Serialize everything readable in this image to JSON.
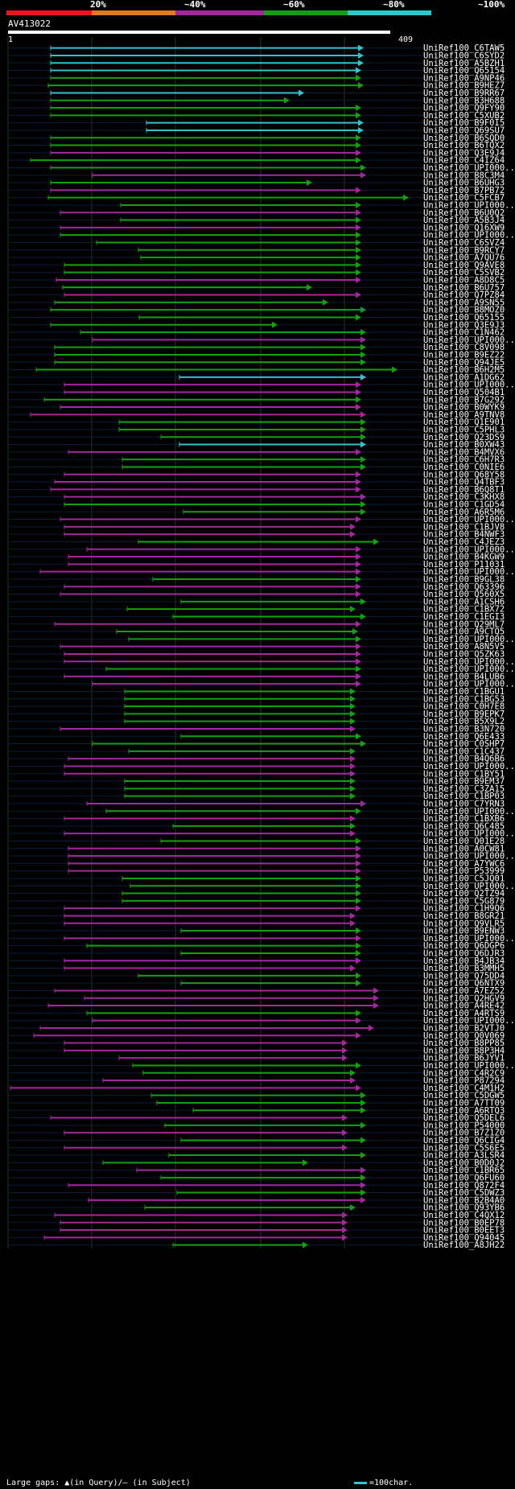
{
  "scale": {
    "labels": [
      "20%",
      "~40%",
      "~60%",
      "~80%",
      "~100%"
    ],
    "colors": [
      "#e8141e",
      "#e07a1a",
      "#a4279f",
      "#12a112",
      "#2fc4d0"
    ]
  },
  "query": {
    "id": "AV413022",
    "start": "1",
    "end": "409"
  },
  "legend": {
    "text": "Large gaps: ▲(in Query)/— (in Subject)",
    "key": "=100char."
  },
  "hits": [
    {
      "l": "UniRef100_C6TAW5",
      "c": "#2fc4d0",
      "s": 63,
      "e": 452
    },
    {
      "l": "UniRef100_C6SYD2",
      "c": "#2fc4d0",
      "s": 63,
      "e": 452
    },
    {
      "l": "UniRef100_A5BZH1",
      "c": "#2fc4d0",
      "s": 63,
      "e": 452
    },
    {
      "l": "UniRef100_Q65154",
      "c": "#2fc4d0",
      "s": 63,
      "e": 449
    },
    {
      "l": "UniRef100_A9NP46",
      "c": "#12a112",
      "s": 63,
      "e": 449
    },
    {
      "l": "UniRef100_B9HEZ7",
      "c": "#12a112",
      "s": 60,
      "e": 452
    },
    {
      "l": "UniRef100_B9RR67",
      "c": "#2fc4d0",
      "s": 63,
      "e": 378
    },
    {
      "l": "UniRef100_B3H688",
      "c": "#12a112",
      "s": 63,
      "e": 360
    },
    {
      "l": "UniRef100_Q9FY90",
      "c": "#12a112",
      "s": 63,
      "e": 449
    },
    {
      "l": "UniRef100_C5XUB2",
      "c": "#12a112",
      "s": 63,
      "e": 449
    },
    {
      "l": "UniRef100_B9F0I5",
      "c": "#2fc4d0",
      "s": 182,
      "e": 452
    },
    {
      "l": "UniRef100_Q69SU7",
      "c": "#2fc4d0",
      "s": 182,
      "e": 452
    },
    {
      "l": "UniRef100_B6SQD0",
      "c": "#12a112",
      "s": 63,
      "e": 449
    },
    {
      "l": "UniRef100_B6TQX2",
      "c": "#12a112",
      "s": 63,
      "e": 449
    },
    {
      "l": "UniRef100_Q3E9J4",
      "c": "#a4279f",
      "s": 63,
      "e": 449
    },
    {
      "l": "UniRef100_C4IZ64",
      "c": "#12a112",
      "s": 38,
      "e": 449
    },
    {
      "l": "UniRef100_UPI000..",
      "c": "#12a112",
      "s": 63,
      "e": 455
    },
    {
      "l": "UniRef100_B8C3M4",
      "c": "#a4279f",
      "s": 115,
      "e": 455
    },
    {
      "l": "UniRef100_B6UHG3",
      "c": "#12a112",
      "s": 63,
      "e": 388
    },
    {
      "l": "UniRef100_B7PB72",
      "c": "#a4279f",
      "s": 63,
      "e": 449
    },
    {
      "l": "UniRef100_C5FCB7",
      "c": "#12a112",
      "s": 60,
      "e": 508
    },
    {
      "l": "UniRef100_UPI000..",
      "c": "#12a112",
      "s": 150,
      "e": 449
    },
    {
      "l": "UniRef100_B6U0Q2",
      "c": "#a4279f",
      "s": 75,
      "e": 449
    },
    {
      "l": "UniRef100_A5B3J4",
      "c": "#12a112",
      "s": 150,
      "e": 449
    },
    {
      "l": "UniRef100_Q16XW9",
      "c": "#a4279f",
      "s": 75,
      "e": 449
    },
    {
      "l": "UniRef100_UPI000..",
      "c": "#12a112",
      "s": 75,
      "e": 449
    },
    {
      "l": "UniRef100_C6SVZ4",
      "c": "#12a112",
      "s": 120,
      "e": 449
    },
    {
      "l": "UniRef100_B9RCY7",
      "c": "#12a112",
      "s": 172,
      "e": 449
    },
    {
      "l": "UniRef100_A7QU76",
      "c": "#12a112",
      "s": 175,
      "e": 449
    },
    {
      "l": "UniRef100_Q9AVE8",
      "c": "#12a112",
      "s": 80,
      "e": 449
    },
    {
      "l": "UniRef100_C5SVB2",
      "c": "#12a112",
      "s": 80,
      "e": 449
    },
    {
      "l": "UniRef100_A8D8C5",
      "c": "#a4279f",
      "s": 70,
      "e": 449
    },
    {
      "l": "UniRef100_B6U757",
      "c": "#12a112",
      "s": 78,
      "e": 388
    },
    {
      "l": "UniRef100_Q7PZ84",
      "c": "#a4279f",
      "s": 80,
      "e": 449
    },
    {
      "l": "UniRef100_A9SN55",
      "c": "#12a112",
      "s": 68,
      "e": 408
    },
    {
      "l": "UniRef100_B8MOZ0",
      "c": "#12a112",
      "s": 63,
      "e": 455
    },
    {
      "l": "UniRef100_Q65155",
      "c": "#12a112",
      "s": 173,
      "e": 449
    },
    {
      "l": "UniRef100_Q3E9J3",
      "c": "#12a112",
      "s": 63,
      "e": 345
    },
    {
      "l": "UniRef100_C1N462",
      "c": "#12a112",
      "s": 100,
      "e": 455
    },
    {
      "l": "UniRef100_UPI000..",
      "c": "#a4279f",
      "s": 115,
      "e": 455
    },
    {
      "l": "UniRef100_C8V098",
      "c": "#12a112",
      "s": 68,
      "e": 455
    },
    {
      "l": "UniRef100_B9EZ22",
      "c": "#12a112",
      "s": 68,
      "e": 455
    },
    {
      "l": "UniRef100_Q94JE5",
      "c": "#12a112",
      "s": 68,
      "e": 455
    },
    {
      "l": "UniRef100_B6H2M5",
      "c": "#12a112",
      "s": 45,
      "e": 494
    },
    {
      "l": "UniRef100_A1DG62",
      "c": "#2fc4d0",
      "s": 223,
      "e": 455
    },
    {
      "l": "UniRef100_UPI000..",
      "c": "#a4279f",
      "s": 80,
      "e": 449
    },
    {
      "l": "UniRef100_Q504B1",
      "c": "#a4279f",
      "s": 80,
      "e": 449
    },
    {
      "l": "UniRef100_B7G292",
      "c": "#12a112",
      "s": 55,
      "e": 449
    },
    {
      "l": "UniRef100_B0WYK9",
      "c": "#a4279f",
      "s": 75,
      "e": 449
    },
    {
      "l": "UniRef100_A9TNV8",
      "c": "#a4279f",
      "s": 38,
      "e": 455
    },
    {
      "l": "UniRef100_Q1E901",
      "c": "#12a112",
      "s": 148,
      "e": 455
    },
    {
      "l": "UniRef100_C5PHL3",
      "c": "#12a112",
      "s": 148,
      "e": 455
    },
    {
      "l": "UniRef100_Q23DS9",
      "c": "#12a112",
      "s": 200,
      "e": 455
    },
    {
      "l": "UniRef100_B0XW43",
      "c": "#2fc4d0",
      "s": 223,
      "e": 455
    },
    {
      "l": "UniRef100_B4MVX6",
      "c": "#a4279f",
      "s": 85,
      "e": 449
    },
    {
      "l": "UniRef100_C6H7R3",
      "c": "#12a112",
      "s": 152,
      "e": 455
    },
    {
      "l": "UniRef100_C0NIE6",
      "c": "#12a112",
      "s": 152,
      "e": 455
    },
    {
      "l": "UniRef100_Q68Y58",
      "c": "#a4279f",
      "s": 80,
      "e": 449
    },
    {
      "l": "UniRef100_Q4TBF3",
      "c": "#a4279f",
      "s": 68,
      "e": 449
    },
    {
      "l": "UniRef100_B6Q8T1",
      "c": "#a4279f",
      "s": 63,
      "e": 449
    },
    {
      "l": "UniRef100_C3KHX8",
      "c": "#a4279f",
      "s": 80,
      "e": 455
    },
    {
      "l": "UniRef100_C1GD54",
      "c": "#12a112",
      "s": 80,
      "e": 455
    },
    {
      "l": "UniRef100_A6R5M6",
      "c": "#12a112",
      "s": 228,
      "e": 455
    },
    {
      "l": "UniRef100_UPI000..",
      "c": "#a4279f",
      "s": 75,
      "e": 449
    },
    {
      "l": "UniRef100_C1BJV8",
      "c": "#a4279f",
      "s": 80,
      "e": 442
    },
    {
      "l": "UniRef100_B4NWF3",
      "c": "#a4279f",
      "s": 80,
      "e": 442
    },
    {
      "l": "UniRef100_C4JEZ3",
      "c": "#12a112",
      "s": 172,
      "e": 471
    },
    {
      "l": "UniRef100_UPI000..",
      "c": "#a4279f",
      "s": 108,
      "e": 449
    },
    {
      "l": "UniRef100_B4KGW9",
      "c": "#a4279f",
      "s": 85,
      "e": 449
    },
    {
      "l": "UniRef100_P11031",
      "c": "#a4279f",
      "s": 85,
      "e": 449
    },
    {
      "l": "UniRef100_UPI000..",
      "c": "#a4279f",
      "s": 50,
      "e": 449
    },
    {
      "l": "UniRef100_B9GL38",
      "c": "#12a112",
      "s": 190,
      "e": 449
    },
    {
      "l": "UniRef100_Q63396",
      "c": "#a4279f",
      "s": 80,
      "e": 449
    },
    {
      "l": "UniRef100_Q560X5",
      "c": "#a4279f",
      "s": 75,
      "e": 449
    },
    {
      "l": "UniRef100_A1CSH6",
      "c": "#12a112",
      "s": 225,
      "e": 455
    },
    {
      "l": "UniRef100_C1BX72",
      "c": "#12a112",
      "s": 158,
      "e": 442
    },
    {
      "l": "UniRef100_C1EGI3",
      "c": "#12a112",
      "s": 215,
      "e": 455
    },
    {
      "l": "UniRef100_Q29ML7",
      "c": "#a4279f",
      "s": 68,
      "e": 449
    },
    {
      "l": "UniRef100_A9CTQ5",
      "c": "#12a112",
      "s": 145,
      "e": 445
    },
    {
      "l": "UniRef100_UPI000..",
      "c": "#12a112",
      "s": 160,
      "e": 449
    },
    {
      "l": "UniRef100_A8N5V5",
      "c": "#a4279f",
      "s": 75,
      "e": 449
    },
    {
      "l": "UniRef100_Q5ZK63",
      "c": "#a4279f",
      "s": 80,
      "e": 449
    },
    {
      "l": "UniRef100_UPI000..",
      "c": "#a4279f",
      "s": 80,
      "e": 449
    },
    {
      "l": "UniRef100_UPI000..",
      "c": "#12a112",
      "s": 132,
      "e": 449
    },
    {
      "l": "UniRef100_B4LUB6",
      "c": "#a4279f",
      "s": 80,
      "e": 449
    },
    {
      "l": "UniRef100_UPI000..",
      "c": "#a4279f",
      "s": 115,
      "e": 449
    },
    {
      "l": "UniRef100_C1BGU1",
      "c": "#12a112",
      "s": 155,
      "e": 442
    },
    {
      "l": "UniRef100_C1BG53",
      "c": "#12a112",
      "s": 155,
      "e": 442
    },
    {
      "l": "UniRef100_C0H7E8",
      "c": "#12a112",
      "s": 155,
      "e": 442
    },
    {
      "l": "UniRef100_B9EPK7",
      "c": "#12a112",
      "s": 155,
      "e": 442
    },
    {
      "l": "UniRef100_B5X9L2",
      "c": "#12a112",
      "s": 155,
      "e": 442
    },
    {
      "l": "UniRef100_B3N720",
      "c": "#a4279f",
      "s": 75,
      "e": 442
    },
    {
      "l": "UniRef100_Q6E433",
      "c": "#12a112",
      "s": 225,
      "e": 449
    },
    {
      "l": "UniRef100_C0SHP7",
      "c": "#12a112",
      "s": 115,
      "e": 455
    },
    {
      "l": "UniRef100_C1C437",
      "c": "#12a112",
      "s": 160,
      "e": 442
    },
    {
      "l": "UniRef100_B4Q6B6",
      "c": "#a4279f",
      "s": 85,
      "e": 442
    },
    {
      "l": "UniRef100_UPI000..",
      "c": "#a4279f",
      "s": 80,
      "e": 442
    },
    {
      "l": "UniRef100_C1BY51",
      "c": "#a4279f",
      "s": 80,
      "e": 442
    },
    {
      "l": "UniRef100_B9EM37",
      "c": "#12a112",
      "s": 155,
      "e": 442
    },
    {
      "l": "UniRef100_C3ZA15",
      "c": "#12a112",
      "s": 155,
      "e": 442
    },
    {
      "l": "UniRef100_C1BP03",
      "c": "#12a112",
      "s": 155,
      "e": 442
    },
    {
      "l": "UniRef100_C7YRN3",
      "c": "#a4279f",
      "s": 108,
      "e": 455
    },
    {
      "l": "UniRef100_UPI000..",
      "c": "#12a112",
      "s": 132,
      "e": 449
    },
    {
      "l": "UniRef100_C1BXB6",
      "c": "#a4279f",
      "s": 80,
      "e": 442
    },
    {
      "l": "UniRef100_Q6C485",
      "c": "#12a112",
      "s": 215,
      "e": 442
    },
    {
      "l": "UniRef100_UPI000..",
      "c": "#a4279f",
      "s": 80,
      "e": 442
    },
    {
      "l": "UniRef100_Q01E28",
      "c": "#12a112",
      "s": 200,
      "e": 449
    },
    {
      "l": "UniRef100_A0CW81",
      "c": "#a4279f",
      "s": 85,
      "e": 449
    },
    {
      "l": "UniRef100_UPI000..",
      "c": "#a4279f",
      "s": 85,
      "e": 449
    },
    {
      "l": "UniRef100_A7YWC6",
      "c": "#a4279f",
      "s": 85,
      "e": 449
    },
    {
      "l": "UniRef100_P53999",
      "c": "#a4279f",
      "s": 85,
      "e": 449
    },
    {
      "l": "UniRef100_C5JQ01",
      "c": "#12a112",
      "s": 152,
      "e": 449
    },
    {
      "l": "UniRef100_UPI000..",
      "c": "#12a112",
      "s": 162,
      "e": 449
    },
    {
      "l": "UniRef100_Q2TZ94",
      "c": "#12a112",
      "s": 152,
      "e": 449
    },
    {
      "l": "UniRef100_C5G879",
      "c": "#12a112",
      "s": 152,
      "e": 449
    },
    {
      "l": "UniRef100_C1H9Q6",
      "c": "#a4279f",
      "s": 80,
      "e": 449
    },
    {
      "l": "UniRef100_B8GR21",
      "c": "#a4279f",
      "s": 80,
      "e": 442
    },
    {
      "l": "UniRef100_Q9VLR5",
      "c": "#a4279f",
      "s": 80,
      "e": 442
    },
    {
      "l": "UniRef100_B9ENW3",
      "c": "#12a112",
      "s": 225,
      "e": 449
    },
    {
      "l": "UniRef100_UPI000..",
      "c": "#a4279f",
      "s": 80,
      "e": 449
    },
    {
      "l": "UniRef100_Q6DGP6",
      "c": "#12a112",
      "s": 108,
      "e": 449
    },
    {
      "l": "UniRef100_Q6DJR3",
      "c": "#12a112",
      "s": 225,
      "e": 449
    },
    {
      "l": "UniRef100_B4JB34",
      "c": "#a4279f",
      "s": 80,
      "e": 449
    },
    {
      "l": "UniRef100_B3MMH5",
      "c": "#a4279f",
      "s": 80,
      "e": 442
    },
    {
      "l": "UniRef100_Q75DD4",
      "c": "#12a112",
      "s": 172,
      "e": 449
    },
    {
      "l": "UniRef100_Q6NTX9",
      "c": "#12a112",
      "s": 225,
      "e": 449
    },
    {
      "l": "UniRef100_A7EZ52",
      "c": "#a4279f",
      "s": 68,
      "e": 471
    },
    {
      "l": "UniRef100_Q2HGV9",
      "c": "#a4279f",
      "s": 105,
      "e": 471
    },
    {
      "l": "UniRef100_A4RE42",
      "c": "#a4279f",
      "s": 60,
      "e": 471
    },
    {
      "l": "UniRef100_A4RTS9",
      "c": "#12a112",
      "s": 108,
      "e": 449
    },
    {
      "l": "UniRef100_UPI000..",
      "c": "#a4279f",
      "s": 115,
      "e": 449
    },
    {
      "l": "UniRef100_B2VTJ0",
      "c": "#a4279f",
      "s": 50,
      "e": 465
    },
    {
      "l": "UniRef100_Q0V069",
      "c": "#a4279f",
      "s": 42,
      "e": 449
    },
    {
      "l": "UniRef100_B8PP85",
      "c": "#a4279f",
      "s": 80,
      "e": 432
    },
    {
      "l": "UniRef100_B8P3H4",
      "c": "#a4279f",
      "s": 80,
      "e": 432
    },
    {
      "l": "UniRef100_B6JYV1",
      "c": "#a4279f",
      "s": 148,
      "e": 432
    },
    {
      "l": "UniRef100_UPI000..",
      "c": "#12a112",
      "s": 165,
      "e": 449
    },
    {
      "l": "UniRef100_C4R2C9",
      "c": "#12a112",
      "s": 178,
      "e": 442
    },
    {
      "l": "UniRef100_P87294",
      "c": "#a4279f",
      "s": 128,
      "e": 442
    },
    {
      "l": "UniRef100_C4M1H2",
      "c": "#a4279f",
      "s": 13,
      "e": 449
    },
    {
      "l": "UniRef100_C5DGW5",
      "c": "#12a112",
      "s": 188,
      "e": 455
    },
    {
      "l": "UniRef100_A7TT09",
      "c": "#12a112",
      "s": 195,
      "e": 455
    },
    {
      "l": "UniRef100_A6RTQ3",
      "c": "#12a112",
      "s": 240,
      "e": 455
    },
    {
      "l": "UniRef100_Q5DEL6",
      "c": "#a4279f",
      "s": 63,
      "e": 432
    },
    {
      "l": "UniRef100_P54000",
      "c": "#12a112",
      "s": 205,
      "e": 455
    },
    {
      "l": "UniRef100_B7Z1Z0",
      "c": "#a4279f",
      "s": 80,
      "e": 432
    },
    {
      "l": "UniRef100_Q6CIG4",
      "c": "#12a112",
      "s": 225,
      "e": 455
    },
    {
      "l": "UniRef100_C5S6E5",
      "c": "#a4279f",
      "s": 80,
      "e": 432
    },
    {
      "l": "UniRef100_A3LSR4",
      "c": "#12a112",
      "s": 210,
      "e": 455
    },
    {
      "l": "UniRef100_B0D0J2",
      "c": "#12a112",
      "s": 128,
      "e": 383
    },
    {
      "l": "UniRef100_C1BR65",
      "c": "#a4279f",
      "s": 170,
      "e": 455
    },
    {
      "l": "UniRef100_Q6FU60",
      "c": "#12a112",
      "s": 200,
      "e": 455
    },
    {
      "l": "UniRef100_Q872F4",
      "c": "#a4279f",
      "s": 85,
      "e": 455
    },
    {
      "l": "UniRef100_C5DWZ3",
      "c": "#12a112",
      "s": 220,
      "e": 455
    },
    {
      "l": "UniRef100_B2B4A0",
      "c": "#a4279f",
      "s": 110,
      "e": 455
    },
    {
      "l": "UniRef100_Q93YB6",
      "c": "#12a112",
      "s": 180,
      "e": 442
    },
    {
      "l": "UniRef100_C4QX12",
      "c": "#a4279f",
      "s": 68,
      "e": 432
    },
    {
      "l": "UniRef100_B0EP78",
      "c": "#a4279f",
      "s": 75,
      "e": 432
    },
    {
      "l": "UniRef100_B0EET3",
      "c": "#a4279f",
      "s": 75,
      "e": 432
    },
    {
      "l": "UniRef100_Q94045",
      "c": "#a4279f",
      "s": 55,
      "e": 432
    },
    {
      "l": "UniRef100_A8JH22",
      "c": "#12a112",
      "s": 215,
      "e": 383
    }
  ]
}
